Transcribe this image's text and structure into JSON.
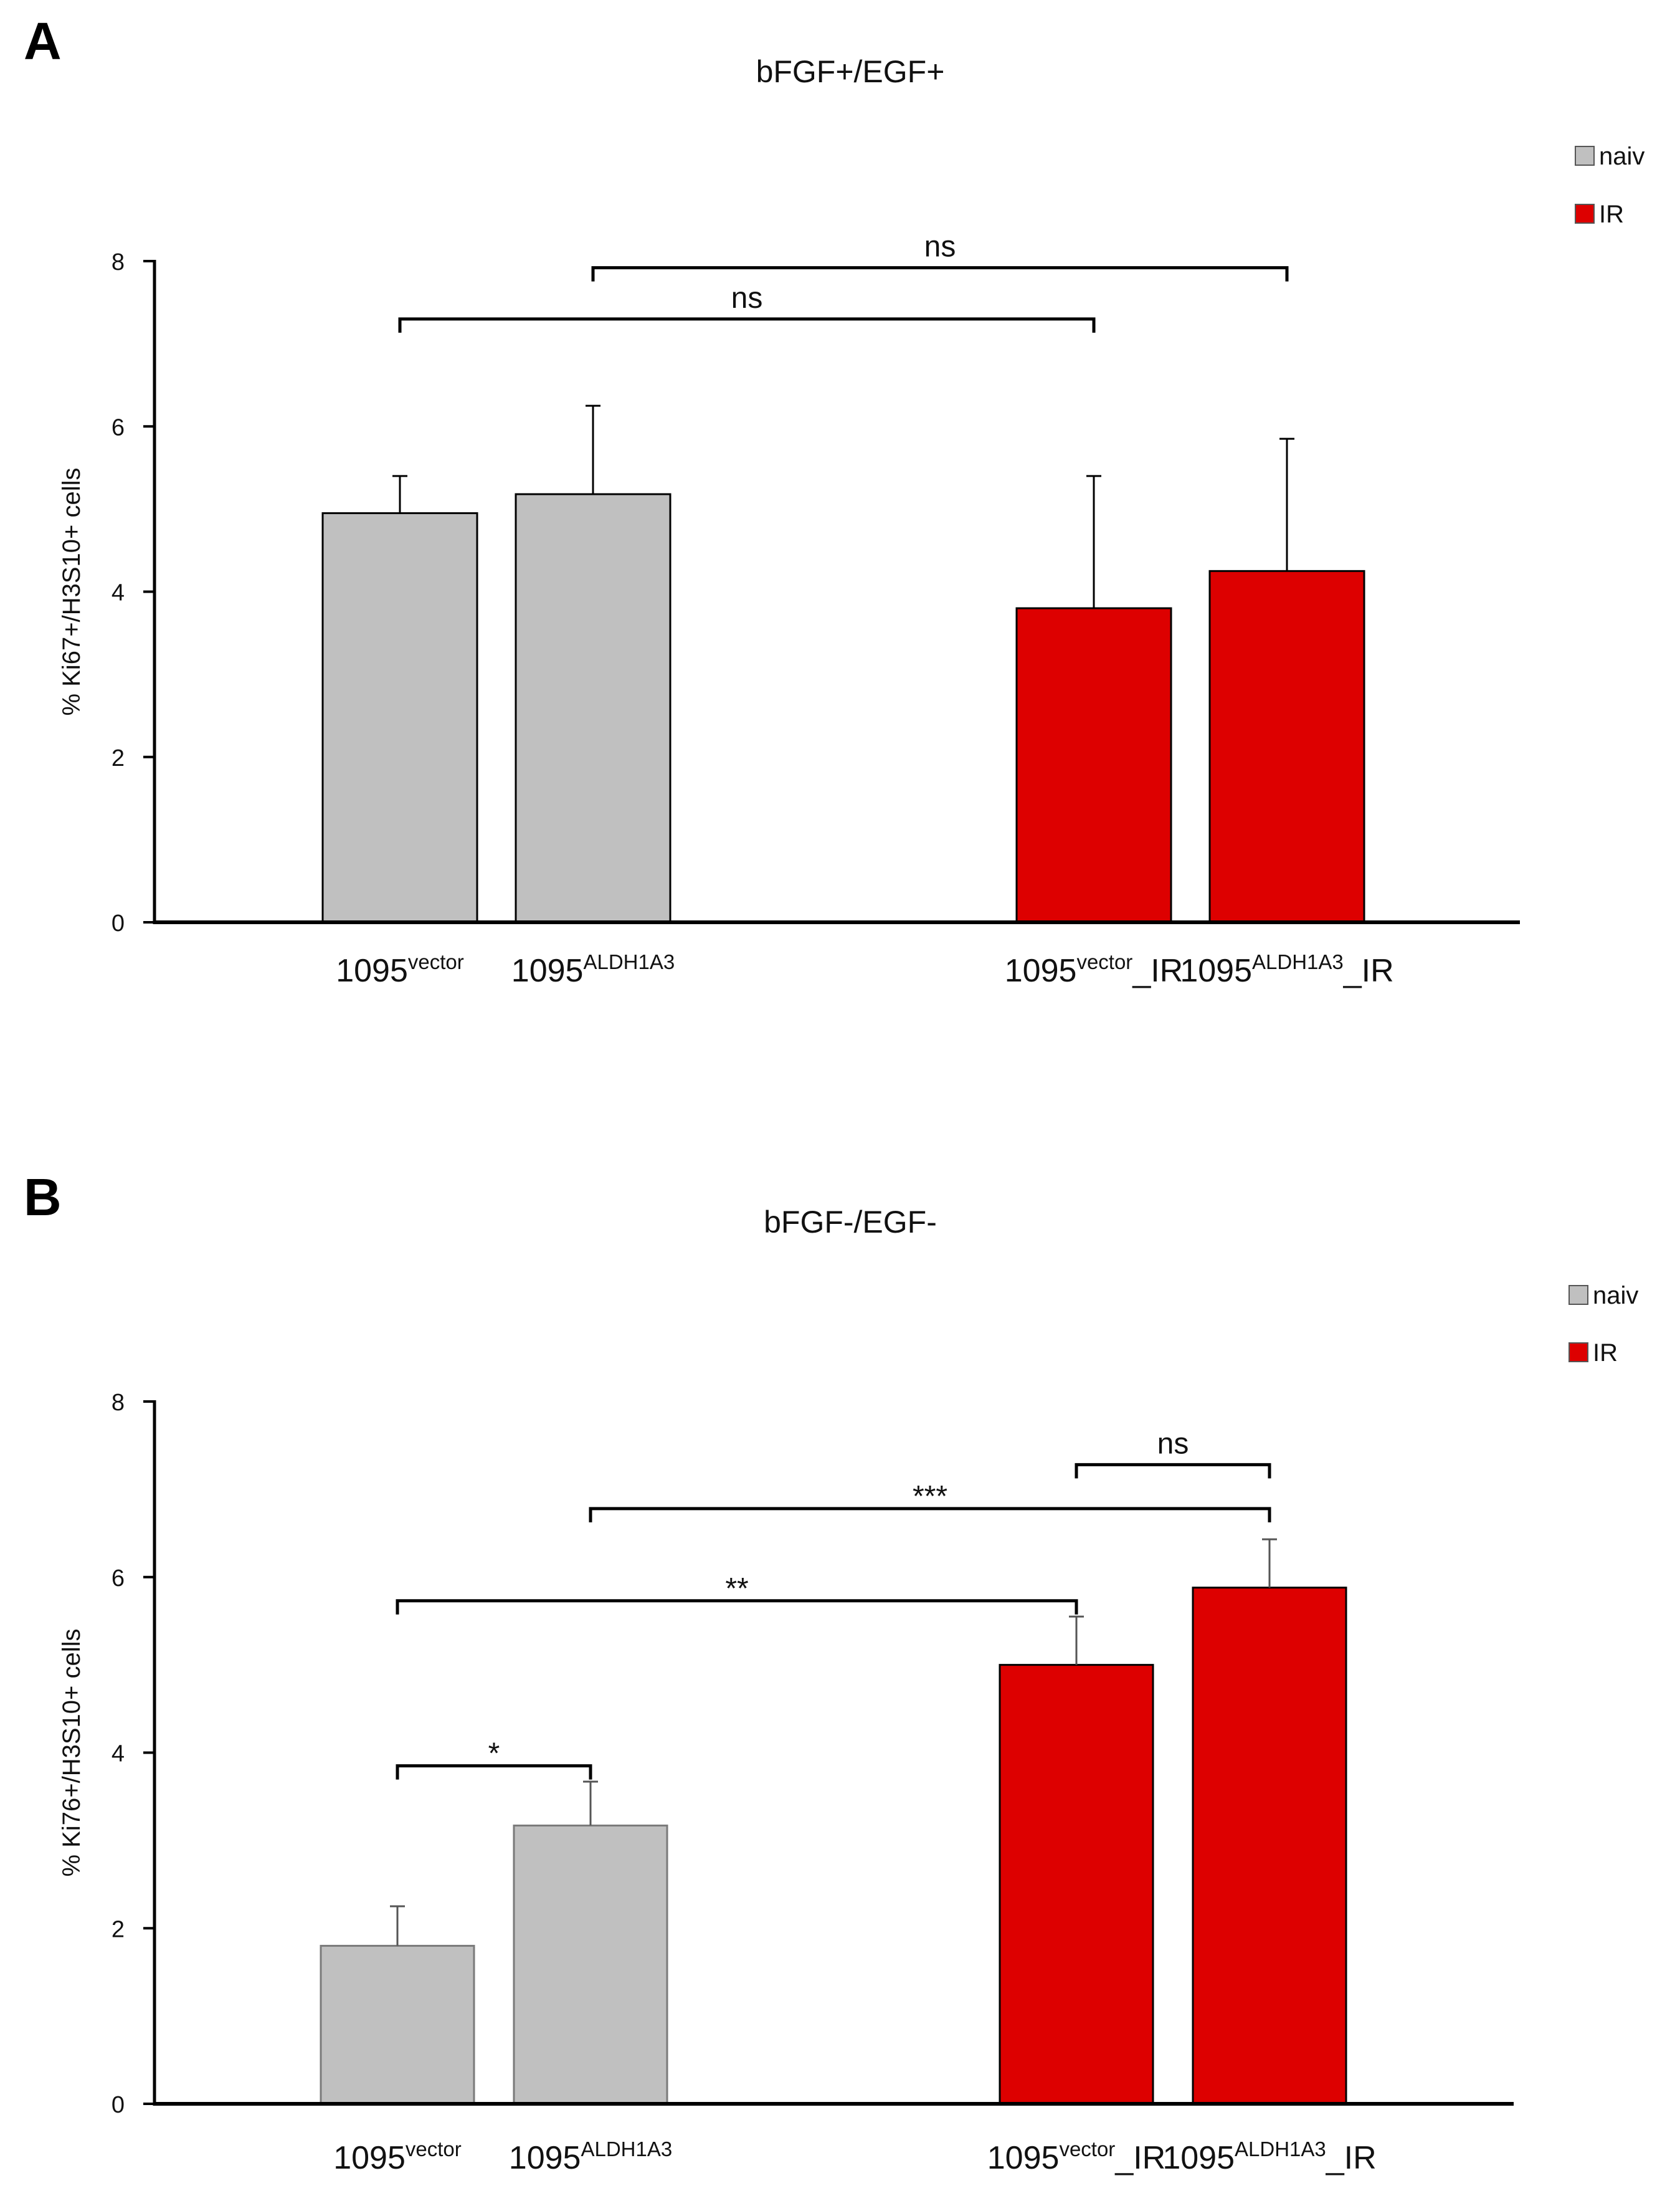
{
  "chart_data": [
    {
      "type": "bar",
      "panel_label": "A",
      "title": "bFGF+/EGF+",
      "ylabel": "% Ki67+/H3S10+ cells",
      "xlabel": "",
      "ylim": [
        0,
        8
      ],
      "yticks": [
        0,
        2,
        4,
        6,
        8
      ],
      "grid": false,
      "legend_position": "top-right",
      "legend": [
        {
          "name": "naiv",
          "color": "#c0c0c0"
        },
        {
          "name": "IR",
          "color": "#dd0000"
        }
      ],
      "categories": [
        {
          "base": "1095",
          "sup": "vector",
          "suffix": "",
          "group": "naiv"
        },
        {
          "base": "1095",
          "sup": "ALDH1A3",
          "suffix": "",
          "group": "naiv"
        },
        {
          "base": "1095",
          "sup": "vector",
          "suffix": "_IR",
          "group": "IR"
        },
        {
          "base": "1095",
          "sup": "ALDH1A3",
          "suffix": "_IR",
          "group": "IR"
        }
      ],
      "values": [
        4.95,
        5.18,
        3.8,
        4.25
      ],
      "errors": [
        0.45,
        1.07,
        1.6,
        1.6
      ],
      "significance": [
        {
          "from": 0,
          "to": 2,
          "label": "ns",
          "y": 7.3
        },
        {
          "from": 1,
          "to": 3,
          "label": "ns",
          "y": 7.92
        }
      ]
    },
    {
      "type": "bar",
      "panel_label": "B",
      "title": "bFGF-/EGF-",
      "ylabel": "% Ki76+/H3S10+ cells",
      "xlabel": "",
      "ylim": [
        0,
        8
      ],
      "yticks": [
        0,
        2,
        4,
        6,
        8
      ],
      "grid": false,
      "legend_position": "top-right",
      "legend": [
        {
          "name": "naiv",
          "color": "#c0c0c0"
        },
        {
          "name": "IR",
          "color": "#dd0000"
        }
      ],
      "categories": [
        {
          "base": "1095",
          "sup": "vector",
          "suffix": "",
          "group": "naiv"
        },
        {
          "base": "1095",
          "sup": "ALDH1A3",
          "suffix": "",
          "group": "naiv"
        },
        {
          "base": "1095",
          "sup": "vector",
          "suffix": "_IR",
          "group": "IR"
        },
        {
          "base": "1095",
          "sup": "ALDH1A3",
          "suffix": "_IR",
          "group": "IR"
        }
      ],
      "values": [
        1.8,
        3.17,
        5.0,
        5.88
      ],
      "errors": [
        0.45,
        0.5,
        0.55,
        0.55
      ],
      "significance": [
        {
          "from": 0,
          "to": 1,
          "label": "*",
          "y": 3.85
        },
        {
          "from": 0,
          "to": 2,
          "label": "**",
          "y": 5.73
        },
        {
          "from": 1,
          "to": 3,
          "label": "***",
          "y": 6.78
        },
        {
          "from": 2,
          "to": 3,
          "label": "ns",
          "y": 7.28
        }
      ]
    }
  ]
}
